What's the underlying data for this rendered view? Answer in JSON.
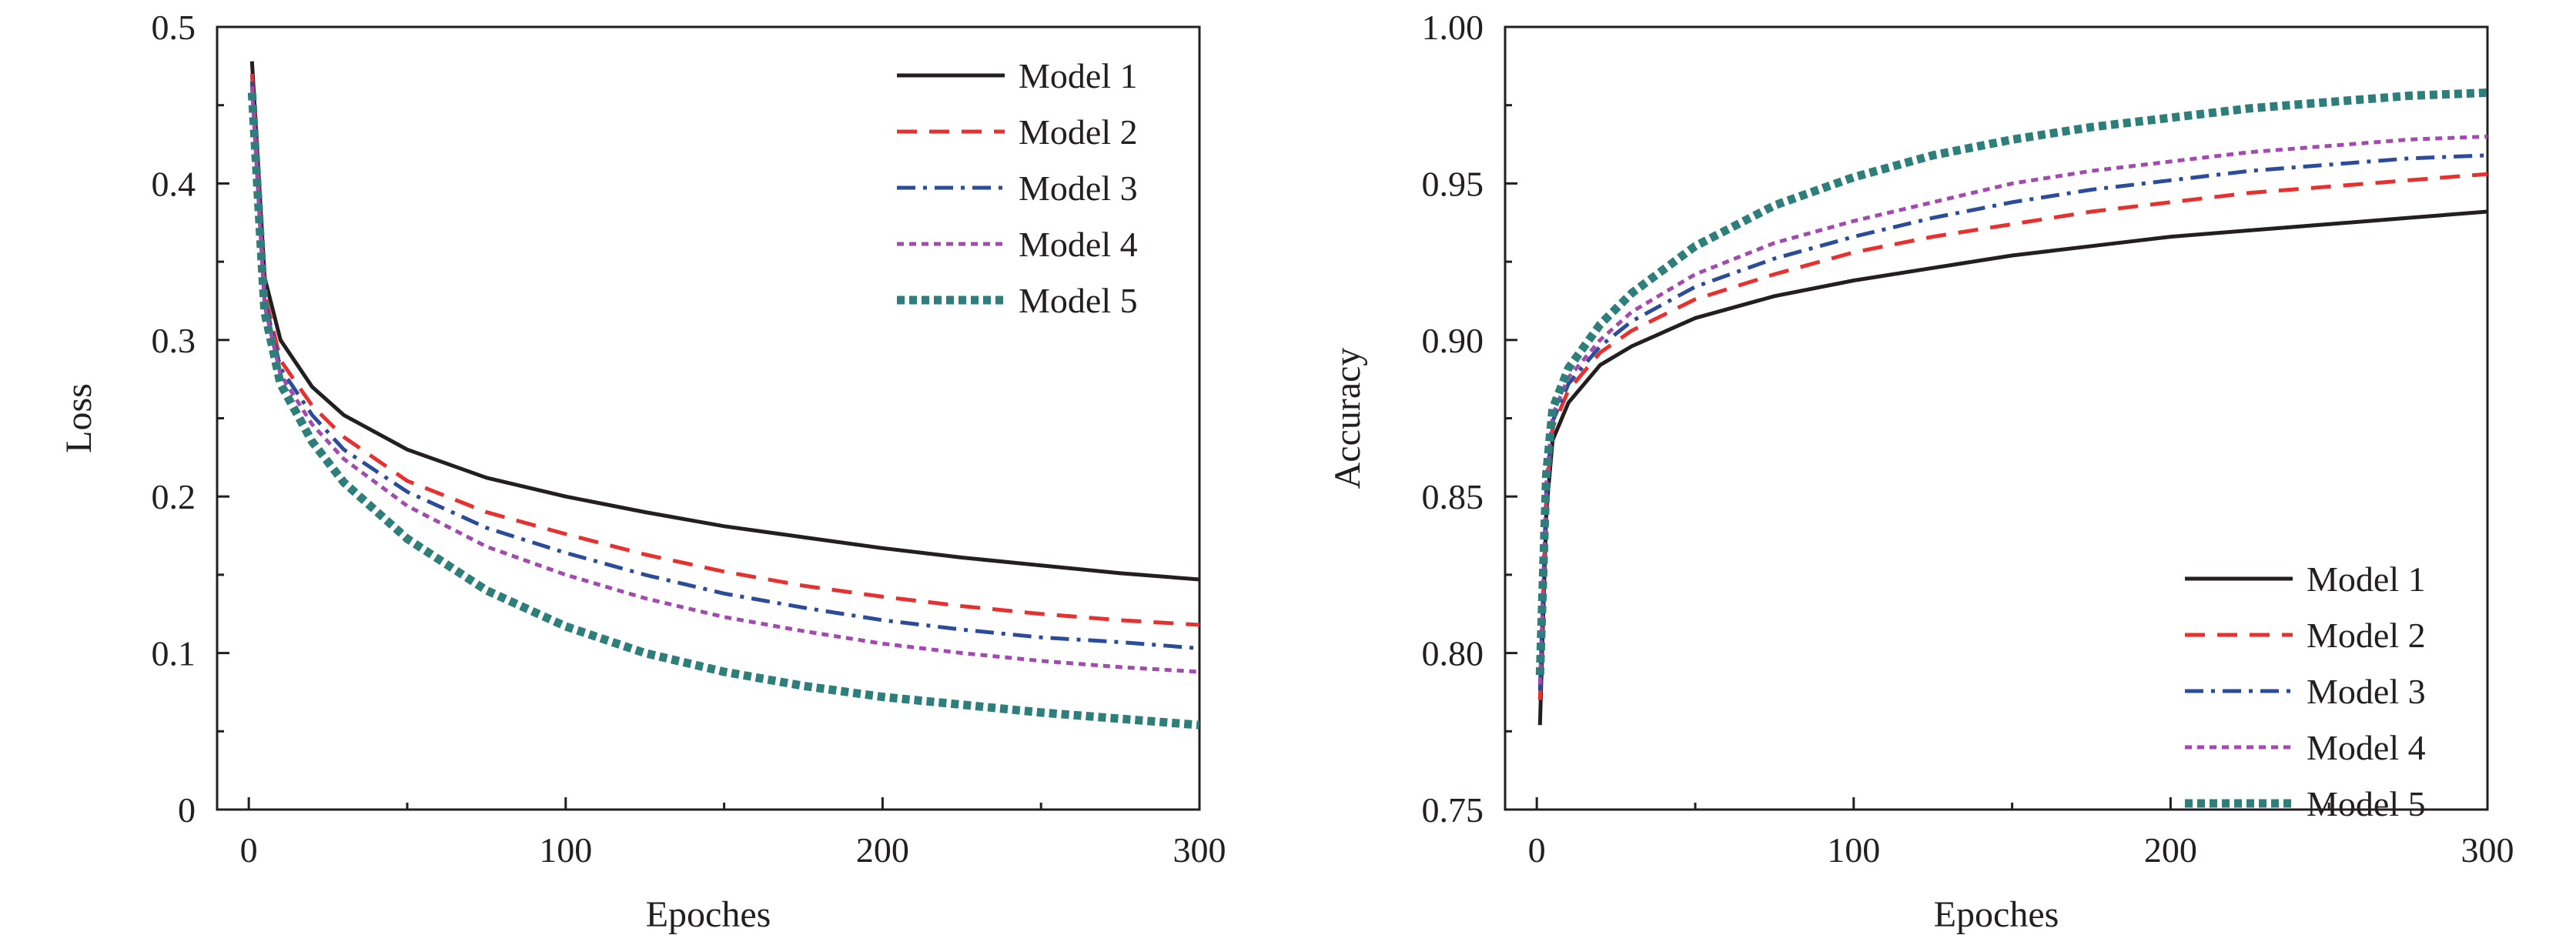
{
  "chart_data": [
    {
      "type": "line",
      "title": "",
      "xlabel": "Epoches",
      "ylabel": "Loss",
      "xlim": [
        -10,
        300
      ],
      "ylim": [
        0,
        0.5
      ],
      "xticks": [
        0,
        100,
        200,
        300
      ],
      "xtick_labels": [
        "0",
        "100",
        "200",
        "300"
      ],
      "yticks": [
        0,
        0.1,
        0.2,
        0.3,
        0.4,
        0.5
      ],
      "ytick_labels": [
        "0",
        "0.1",
        "0.2",
        "0.3",
        "0.4",
        "0.5"
      ],
      "grid": false,
      "legend_position": "top-right",
      "x": [
        1,
        5,
        10,
        20,
        30,
        50,
        75,
        100,
        125,
        150,
        175,
        200,
        225,
        250,
        275,
        300
      ],
      "series": [
        {
          "name": "Model 1",
          "color": "#231f20",
          "style": "solid",
          "values": [
            0.478,
            0.34,
            0.3,
            0.27,
            0.252,
            0.23,
            0.212,
            0.2,
            0.19,
            0.181,
            0.174,
            0.167,
            0.161,
            0.156,
            0.151,
            0.147
          ]
        },
        {
          "name": "Model 2",
          "color": "#e8302f",
          "style": "dashed",
          "values": [
            0.47,
            0.33,
            0.287,
            0.258,
            0.238,
            0.21,
            0.19,
            0.176,
            0.163,
            0.152,
            0.143,
            0.136,
            0.13,
            0.125,
            0.121,
            0.118
          ]
        },
        {
          "name": "Model 3",
          "color": "#2b4c9a",
          "style": "dashdot",
          "values": [
            0.465,
            0.326,
            0.282,
            0.252,
            0.23,
            0.203,
            0.18,
            0.164,
            0.15,
            0.138,
            0.129,
            0.121,
            0.115,
            0.11,
            0.107,
            0.103
          ]
        },
        {
          "name": "Model 4",
          "color": "#a24ab0",
          "style": "dotted",
          "values": [
            0.462,
            0.322,
            0.278,
            0.246,
            0.224,
            0.194,
            0.168,
            0.15,
            0.135,
            0.123,
            0.114,
            0.106,
            0.1,
            0.095,
            0.091,
            0.088
          ]
        },
        {
          "name": "Model 5",
          "color": "#2e7f7b",
          "style": "thick-dotted",
          "values": [
            0.458,
            0.318,
            0.272,
            0.235,
            0.209,
            0.173,
            0.14,
            0.117,
            0.1,
            0.088,
            0.079,
            0.072,
            0.067,
            0.062,
            0.058,
            0.054
          ]
        }
      ]
    },
    {
      "type": "line",
      "title": "",
      "xlabel": "Epoches",
      "ylabel": "Accuracy",
      "xlim": [
        -10,
        300
      ],
      "ylim": [
        0.75,
        1.0
      ],
      "xticks": [
        0,
        100,
        200,
        300
      ],
      "xtick_labels": [
        "0",
        "100",
        "200",
        "300"
      ],
      "yticks": [
        0.75,
        0.8,
        0.85,
        0.9,
        0.95,
        1.0
      ],
      "ytick_labels": [
        "0.75",
        "0.80",
        "0.85",
        "0.90",
        "0.95",
        "1.00"
      ],
      "grid": false,
      "legend_position": "bottom-right",
      "x": [
        1,
        3,
        5,
        10,
        20,
        30,
        50,
        75,
        100,
        125,
        150,
        175,
        200,
        225,
        250,
        275,
        300
      ],
      "series": [
        {
          "name": "Model 1",
          "color": "#231f20",
          "style": "solid",
          "values": [
            0.777,
            0.845,
            0.868,
            0.88,
            0.892,
            0.898,
            0.907,
            0.914,
            0.919,
            0.923,
            0.927,
            0.93,
            0.933,
            0.935,
            0.937,
            0.939,
            0.941
          ]
        },
        {
          "name": "Model 2",
          "color": "#e8302f",
          "style": "dashed",
          "values": [
            0.785,
            0.85,
            0.872,
            0.884,
            0.896,
            0.903,
            0.913,
            0.921,
            0.928,
            0.933,
            0.937,
            0.941,
            0.944,
            0.947,
            0.949,
            0.951,
            0.953
          ]
        },
        {
          "name": "Model 3",
          "color": "#2b4c9a",
          "style": "dashdot",
          "values": [
            0.788,
            0.852,
            0.874,
            0.886,
            0.898,
            0.906,
            0.917,
            0.926,
            0.933,
            0.939,
            0.944,
            0.948,
            0.951,
            0.954,
            0.956,
            0.958,
            0.959
          ]
        },
        {
          "name": "Model 4",
          "color": "#a24ab0",
          "style": "dotted",
          "values": [
            0.79,
            0.854,
            0.876,
            0.888,
            0.9,
            0.909,
            0.921,
            0.931,
            0.938,
            0.944,
            0.95,
            0.954,
            0.957,
            0.96,
            0.962,
            0.964,
            0.965
          ]
        },
        {
          "name": "Model 5",
          "color": "#2e7f7b",
          "style": "thick-dotted",
          "values": [
            0.793,
            0.857,
            0.878,
            0.891,
            0.905,
            0.915,
            0.93,
            0.943,
            0.952,
            0.959,
            0.964,
            0.968,
            0.971,
            0.974,
            0.976,
            0.978,
            0.979
          ]
        }
      ]
    }
  ]
}
